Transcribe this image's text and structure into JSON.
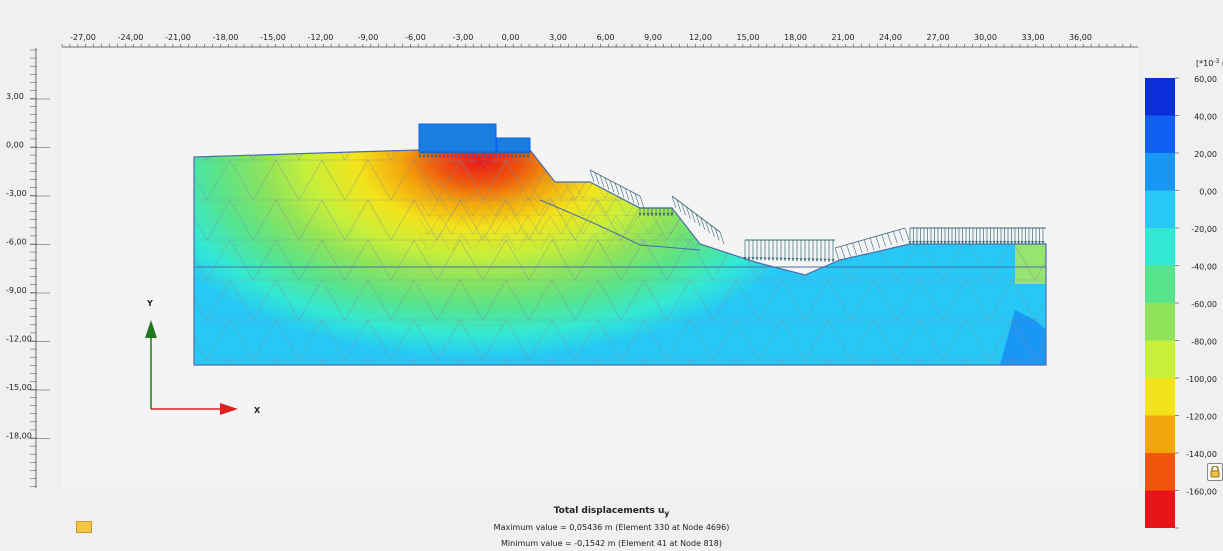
{
  "plot": {
    "x_ticks": [
      "-27,00",
      "-24,00",
      "-21,00",
      "-18,00",
      "-15,00",
      "-12,00",
      "-9,00",
      "-6,00",
      "-3,00",
      "0,00",
      "3,00",
      "6,00",
      "9,00",
      "12,00",
      "15,00",
      "18,00",
      "21,00",
      "24,00",
      "27,00",
      "30,00",
      "33,00",
      "36,00"
    ],
    "y_ticks": [
      "3,00",
      "0,00",
      "-3,00",
      "-6,00",
      "-9,00",
      "-12,00",
      "-15,00",
      "-18,00"
    ],
    "axis_x_label": "X",
    "axis_y_label": "Y"
  },
  "legend": {
    "unit_prefix": "[*10",
    "unit_exp": "-3",
    "unit_suffix": " m]",
    "labels": [
      "60,00",
      "40,00",
      "20,00",
      "0,00",
      "-20,00",
      "-40,00",
      "-60,00",
      "-80,00",
      "-100,00",
      "-120,00",
      "-140,00",
      "-160,00"
    ],
    "colors": [
      "#0a2ed8",
      "#0f5ff0",
      "#1a96f5",
      "#27c8f5",
      "#33e8d3",
      "#59e38a",
      "#8fe35a",
      "#c8ef3a",
      "#f3e31b",
      "#f3a60c",
      "#f2560a",
      "#e8141a"
    ]
  },
  "caption": {
    "title": "Total displacements u",
    "title_sub": "y",
    "max_line": "Maximum value = 0,05436 m (Element 330 at Node 4696)",
    "min_line": "Minimum value = -0,1542 m (Element 41 at Node 818)"
  }
}
